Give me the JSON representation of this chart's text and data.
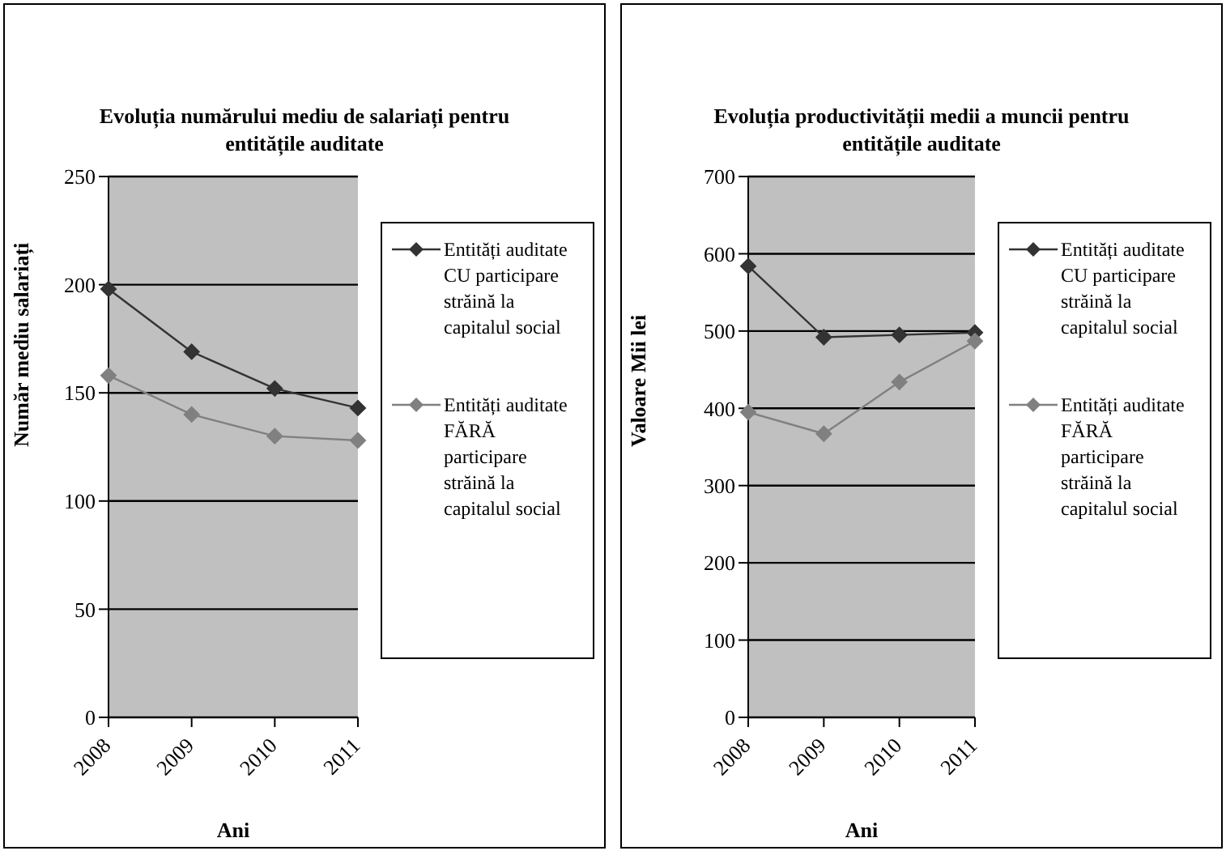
{
  "chart_data": [
    {
      "type": "line",
      "title": "Evoluția numărului mediu de salariați pentru entitățile auditate",
      "xlabel": "Ani",
      "ylabel": "Număr mediu salariați",
      "categories": [
        "2008",
        "2009",
        "2010",
        "2011"
      ],
      "series": [
        {
          "name": "Entități auditate CU participare străină la capitalul social",
          "color": "#333333",
          "values": [
            198,
            169,
            152,
            143
          ]
        },
        {
          "name": "Entități auditate FĂRĂ participare străină la capitalul social",
          "color": "#808080",
          "values": [
            158,
            140,
            130,
            128
          ]
        }
      ],
      "ylim": [
        0,
        250
      ],
      "yticks": [
        0,
        50,
        100,
        150,
        200,
        250
      ],
      "grid": "y",
      "legend": "right",
      "marker": "diamond",
      "line_style": "solid"
    },
    {
      "type": "line",
      "title": "Evoluția productivității medii a muncii pentru entitățile auditate",
      "xlabel": "Ani",
      "ylabel": "Valoare   Mii lei",
      "categories": [
        "2008",
        "2009",
        "2010",
        "2011"
      ],
      "series": [
        {
          "name": "Entități auditate CU participare străină la capitalul social",
          "color": "#333333",
          "values": [
            584,
            492,
            495,
            498
          ]
        },
        {
          "name": "Entități auditate FĂRĂ participare străină la capitalul social",
          "color": "#808080",
          "values": [
            395,
            367,
            434,
            487
          ]
        }
      ],
      "ylim": [
        0,
        700
      ],
      "yticks": [
        0,
        100,
        200,
        300,
        400,
        500,
        600,
        700
      ],
      "grid": "y",
      "legend": "right",
      "marker": "diamond",
      "line_style": "solid"
    }
  ]
}
